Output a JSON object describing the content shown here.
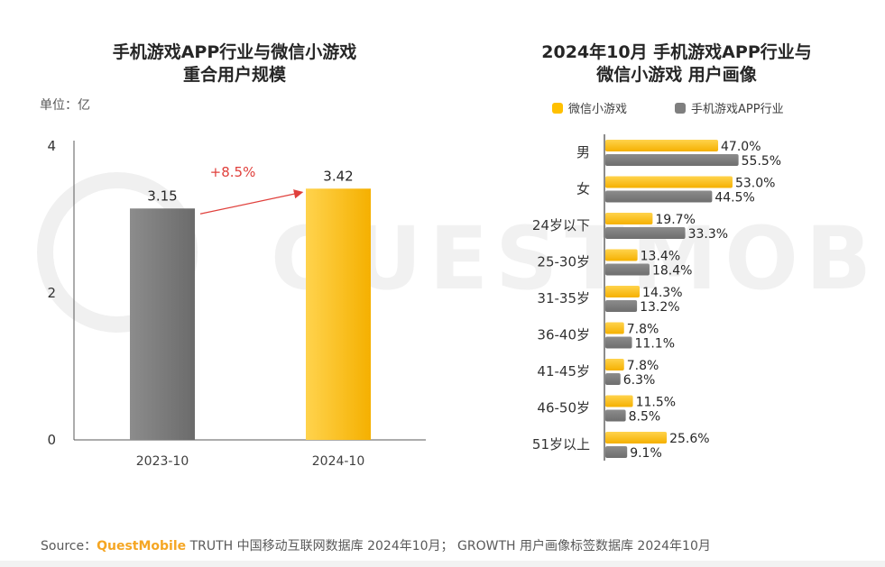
{
  "left_chart": {
    "title_line1": "手机游戏APP行业与微信小游戏",
    "title_line2": "重合用户规模",
    "unit_label": "单位：亿",
    "growth_label": "+8.5%"
  },
  "right_chart": {
    "title_line1": "2024年10月 手机游戏APP行业与",
    "title_line2": "微信小游戏 用户画像"
  },
  "colors": {
    "gray_bar": "#7f7f7f",
    "yellow_bar": "#ffc000",
    "arrow_red": "#e0403c",
    "axis": "#595959"
  },
  "source": {
    "prefix": "Source：",
    "brand": "QuestMobile",
    "rest": " TRUTH 中国移动互联网数据库 2024年10月； GROWTH 用户画像标签数据库 2024年10月"
  },
  "watermark": "QUESTMOBILE",
  "chart_data": [
    {
      "type": "bar",
      "categories": [
        "2023-10",
        "2024-10"
      ],
      "values": [
        3.15,
        3.42
      ],
      "data_labels": [
        "3.15",
        "3.42"
      ],
      "ylim": [
        0,
        4
      ],
      "yticks": [
        0,
        2,
        4
      ],
      "title": "手机游戏APP行业与微信小游戏重合用户规模",
      "ylabel": "单位：亿",
      "annotation": "+8.5%",
      "bar_colors": [
        "#7f7f7f",
        "#ffc000"
      ]
    },
    {
      "type": "bar",
      "orientation": "horizontal",
      "categories": [
        "男",
        "女",
        "24岁以下",
        "25-30岁",
        "31-35岁",
        "36-40岁",
        "41-45岁",
        "46-50岁",
        "51岁以上"
      ],
      "series": [
        {
          "name": "微信小游戏",
          "color": "#ffc000",
          "values": [
            47.0,
            53.0,
            19.7,
            13.4,
            14.3,
            7.8,
            7.8,
            11.5,
            25.6
          ]
        },
        {
          "name": "手机游戏APP行业",
          "color": "#7f7f7f",
          "values": [
            55.5,
            44.5,
            33.3,
            18.4,
            13.2,
            11.1,
            6.3,
            8.5,
            9.1
          ]
        }
      ],
      "unit": "%",
      "title": "2024年10月 手机游戏APP行业与微信小游戏 用户画像",
      "legend_position": "top"
    }
  ]
}
